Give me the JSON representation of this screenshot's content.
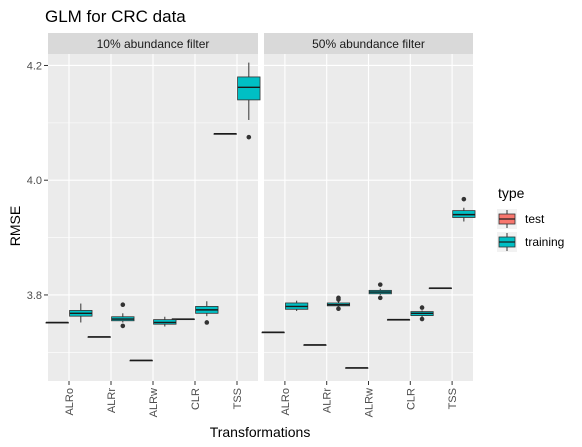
{
  "colors": {
    "test": "#F8766D",
    "training": "#00BFC4",
    "panel_bg": "#EBEBEB",
    "strip_bg": "#D9D9D9",
    "grid": "#FFFFFF"
  },
  "chart_data": {
    "type": "boxplot",
    "title": "GLM for CRC data",
    "xlabel": "Transformations",
    "ylabel": "RMSE",
    "ylim": [
      3.65,
      4.22
    ],
    "y_ticks": [
      3.8,
      4.0,
      4.2
    ],
    "y_tick_labels": [
      "3.8",
      "4.0",
      "4.2"
    ],
    "grid": true,
    "categories": [
      "ALRo",
      "ALRr",
      "ALRw",
      "CLR",
      "TSS"
    ],
    "legend": {
      "title": "type",
      "position": "right",
      "entries": [
        "test",
        "training"
      ]
    },
    "panels": [
      {
        "label": "10% abundance filter",
        "series": [
          {
            "name": "test",
            "boxes": [
              {
                "category": "ALRo",
                "min": 3.752,
                "q1": 3.752,
                "median": 3.752,
                "q3": 3.752,
                "max": 3.752,
                "outliers": []
              },
              {
                "category": "ALRr",
                "min": 3.727,
                "q1": 3.727,
                "median": 3.727,
                "q3": 3.727,
                "max": 3.727,
                "outliers": []
              },
              {
                "category": "ALRw",
                "min": 3.686,
                "q1": 3.686,
                "median": 3.686,
                "q3": 3.686,
                "max": 3.686,
                "outliers": []
              },
              {
                "category": "CLR",
                "min": 3.758,
                "q1": 3.758,
                "median": 3.758,
                "q3": 3.758,
                "max": 3.758,
                "outliers": []
              },
              {
                "category": "TSS",
                "min": 4.081,
                "q1": 4.081,
                "median": 4.081,
                "q3": 4.081,
                "max": 4.081,
                "outliers": []
              }
            ]
          },
          {
            "name": "training",
            "boxes": [
              {
                "category": "ALRo",
                "min": 3.752,
                "q1": 3.763,
                "median": 3.768,
                "q3": 3.773,
                "max": 3.785,
                "outliers": []
              },
              {
                "category": "ALRr",
                "min": 3.752,
                "q1": 3.755,
                "median": 3.758,
                "q3": 3.762,
                "max": 3.768,
                "outliers": [
                  3.783,
                  3.746
                ]
              },
              {
                "category": "ALRw",
                "min": 3.745,
                "q1": 3.749,
                "median": 3.752,
                "q3": 3.757,
                "max": 3.762,
                "outliers": []
              },
              {
                "category": "CLR",
                "min": 3.763,
                "q1": 3.768,
                "median": 3.774,
                "q3": 3.78,
                "max": 3.789,
                "outliers": [
                  3.752
                ]
              },
              {
                "category": "TSS",
                "min": 4.105,
                "q1": 4.14,
                "median": 4.162,
                "q3": 4.18,
                "max": 4.205,
                "outliers": [
                  4.075
                ]
              }
            ]
          }
        ]
      },
      {
        "label": "50% abundance filter",
        "series": [
          {
            "name": "test",
            "boxes": [
              {
                "category": "ALRo",
                "min": 3.735,
                "q1": 3.735,
                "median": 3.735,
                "q3": 3.735,
                "max": 3.735,
                "outliers": []
              },
              {
                "category": "ALRr",
                "min": 3.713,
                "q1": 3.713,
                "median": 3.713,
                "q3": 3.713,
                "max": 3.713,
                "outliers": []
              },
              {
                "category": "ALRw",
                "min": 3.673,
                "q1": 3.673,
                "median": 3.673,
                "q3": 3.673,
                "max": 3.673,
                "outliers": []
              },
              {
                "category": "CLR",
                "min": 3.757,
                "q1": 3.757,
                "median": 3.757,
                "q3": 3.757,
                "max": 3.757,
                "outliers": []
              },
              {
                "category": "TSS",
                "min": 3.812,
                "q1": 3.812,
                "median": 3.812,
                "q3": 3.812,
                "max": 3.812,
                "outliers": []
              }
            ]
          },
          {
            "name": "training",
            "boxes": [
              {
                "category": "ALRo",
                "min": 3.772,
                "q1": 3.775,
                "median": 3.78,
                "q3": 3.786,
                "max": 3.79,
                "outliers": []
              },
              {
                "category": "ALRr",
                "min": 3.78,
                "q1": 3.781,
                "median": 3.783,
                "q3": 3.786,
                "max": 3.789,
                "outliers": [
                  3.795,
                  3.792,
                  3.776
                ]
              },
              {
                "category": "ALRw",
                "min": 3.8,
                "q1": 3.802,
                "median": 3.805,
                "q3": 3.808,
                "max": 3.811,
                "outliers": [
                  3.818,
                  3.795
                ]
              },
              {
                "category": "CLR",
                "min": 3.76,
                "q1": 3.764,
                "median": 3.768,
                "q3": 3.771,
                "max": 3.773,
                "outliers": [
                  3.778,
                  3.758
                ]
              },
              {
                "category": "TSS",
                "min": 3.928,
                "q1": 3.935,
                "median": 3.94,
                "q3": 3.947,
                "max": 3.952,
                "outliers": [
                  3.967
                ]
              }
            ]
          }
        ]
      }
    ]
  }
}
